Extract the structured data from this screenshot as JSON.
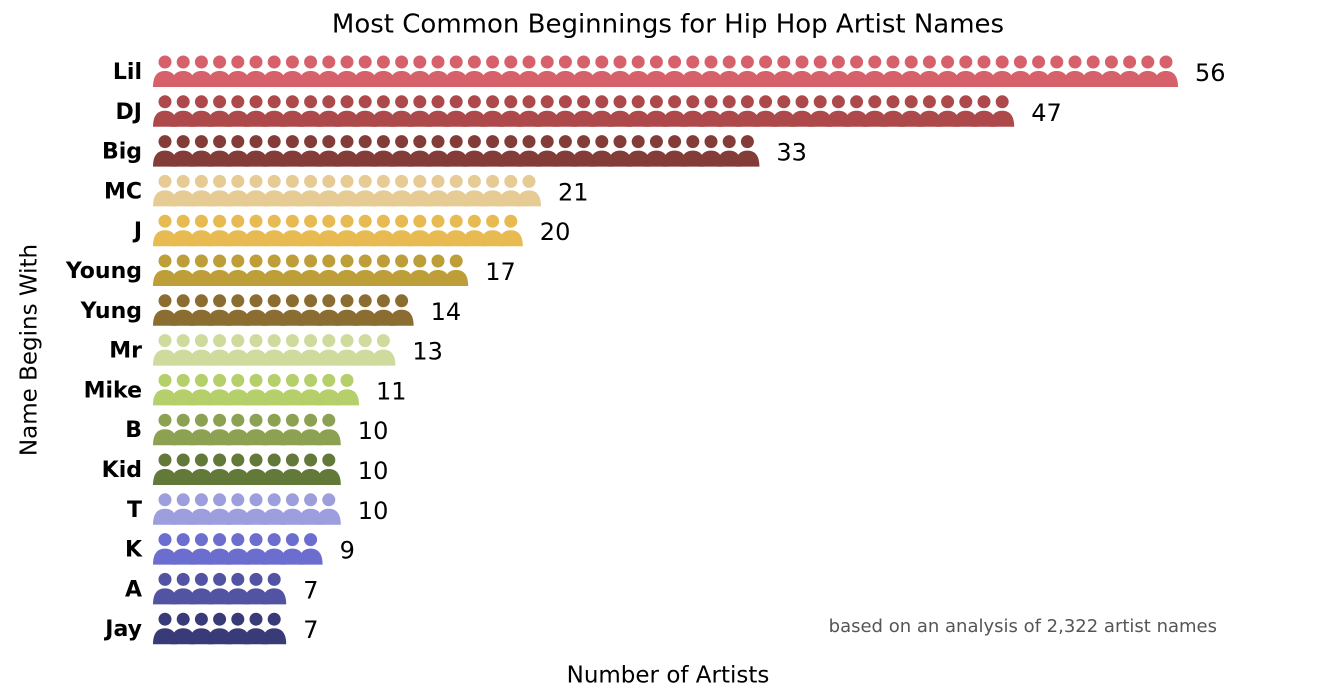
{
  "chart_data": {
    "type": "pictogram",
    "title": "Most Common Beginnings for Hip Hop Artist Names",
    "x_label": "Number of Artists",
    "y_label": "Name Begins With",
    "annotation": "based on an analysis of 2,322 artist names",
    "categories": [
      "Lil",
      "DJ",
      "Big",
      "MC",
      "J",
      "Young",
      "Yung",
      "Mr",
      "Mike",
      "B",
      "Kid",
      "T",
      "K",
      "A",
      "Jay"
    ],
    "values": [
      56,
      47,
      33,
      21,
      20,
      17,
      14,
      13,
      11,
      10,
      10,
      10,
      9,
      7,
      7
    ],
    "colors": [
      "#d6616b",
      "#ad494a",
      "#843c39",
      "#e7cb94",
      "#e7ba52",
      "#bd9e39",
      "#8c6d31",
      "#cedb9c",
      "#b5cf6b",
      "#8ca252",
      "#637939",
      "#9c9ede",
      "#6b6ecf",
      "#5254a3",
      "#393b79"
    ]
  }
}
